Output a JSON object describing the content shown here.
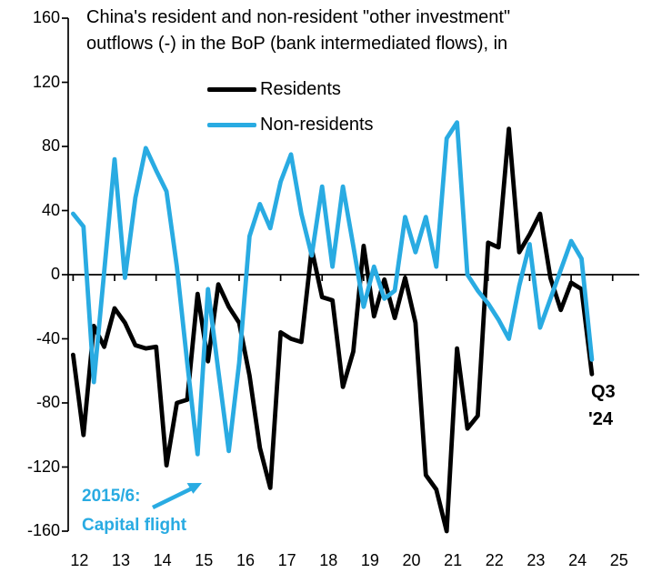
{
  "title": {
    "line1": "China's resident and non-resident \"other investment\"",
    "line2": "outflows (-) in the BoP (bank intermediated flows), in"
  },
  "legend": [
    {
      "label": "Residents",
      "color": "#000000"
    },
    {
      "label": "Non-residents",
      "color": "#29ABE2"
    }
  ],
  "annotations": {
    "capital_flight_line1": "2015/6:",
    "capital_flight_line2": "Capital flight",
    "last_point_line1": "Q3",
    "last_point_line2": "'24"
  },
  "colors": {
    "residents": "#000000",
    "non_residents": "#29ABE2",
    "axis": "#000000"
  },
  "axes": {
    "y_ticks": [
      160,
      120,
      80,
      40,
      0,
      -40,
      -80,
      -120,
      -160
    ],
    "x_tick_labels": [
      "12",
      "13",
      "14",
      "15",
      "16",
      "17",
      "18",
      "19",
      "20",
      "21",
      "22",
      "23",
      "24",
      "25"
    ],
    "ylim": [
      -160,
      160
    ]
  },
  "chart_data": {
    "type": "line",
    "title": "China's resident and non-resident \"other investment\" outflows (-) in the BoP (bank intermediated flows), in",
    "x_unit": "quarter",
    "start": "2012Q1",
    "end": "2024Q3",
    "ylim": [
      -160,
      160
    ],
    "grid": false,
    "legend_position": "top",
    "categories": [
      "2012Q1",
      "2012Q2",
      "2012Q3",
      "2012Q4",
      "2013Q1",
      "2013Q2",
      "2013Q3",
      "2013Q4",
      "2014Q1",
      "2014Q2",
      "2014Q3",
      "2014Q4",
      "2015Q1",
      "2015Q2",
      "2015Q3",
      "2015Q4",
      "2016Q1",
      "2016Q2",
      "2016Q3",
      "2016Q4",
      "2017Q1",
      "2017Q2",
      "2017Q3",
      "2017Q4",
      "2018Q1",
      "2018Q2",
      "2018Q3",
      "2018Q4",
      "2019Q1",
      "2019Q2",
      "2019Q3",
      "2019Q4",
      "2020Q1",
      "2020Q2",
      "2020Q3",
      "2020Q4",
      "2021Q1",
      "2021Q2",
      "2021Q3",
      "2021Q4",
      "2022Q1",
      "2022Q2",
      "2022Q3",
      "2022Q4",
      "2023Q1",
      "2023Q2",
      "2023Q3",
      "2023Q4",
      "2024Q1",
      "2024Q2",
      "2024Q3"
    ],
    "series": [
      {
        "name": "Residents",
        "color": "#000000",
        "values": [
          -50,
          -100,
          -32,
          -45,
          -21,
          -30,
          -44,
          -46,
          -45,
          -119,
          -80,
          -78,
          -12,
          -54,
          -6,
          -20,
          -30,
          -63,
          -108,
          -133,
          -36,
          -40,
          -42,
          16,
          -14,
          -16,
          -70,
          -48,
          18,
          -26,
          -3,
          -27,
          -2,
          -30,
          -125,
          -134,
          -160,
          -46,
          -96,
          -88,
          20,
          17,
          91,
          14,
          25,
          38,
          -2,
          -22,
          -5,
          -9,
          -62
        ]
      },
      {
        "name": "Non-residents",
        "color": "#29ABE2",
        "values": [
          38,
          30,
          -67,
          2,
          72,
          -2,
          48,
          79,
          65,
          52,
          5,
          -55,
          -112,
          -9,
          -60,
          -110,
          -55,
          24,
          44,
          29,
          58,
          75,
          38,
          12,
          55,
          5,
          55,
          18,
          -20,
          5,
          -15,
          -10,
          36,
          14,
          36,
          5,
          85,
          95,
          0,
          -10,
          -18,
          -28,
          -40,
          -7,
          19,
          -33,
          -15,
          3,
          21,
          10,
          -53
        ]
      }
    ]
  }
}
